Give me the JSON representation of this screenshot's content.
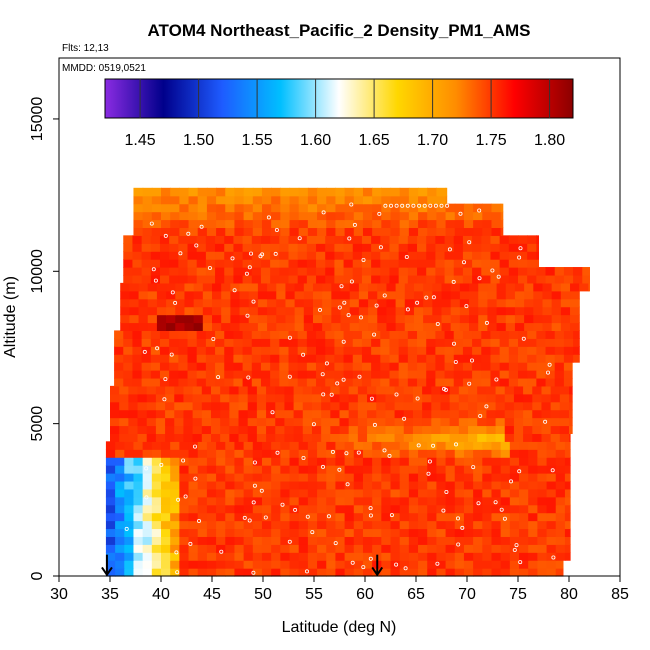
{
  "chart_data": {
    "type": "heatmap",
    "title": "ATOM4 Northeast_Pacific_2 Density_PM1_AMS",
    "annotations": {
      "flights": "Flts: 12,13",
      "dates": "MMDD: 0519,0521"
    },
    "xlabel": "Latitude (deg N)",
    "ylabel": "Altitude (m)",
    "xlim": [
      30,
      85
    ],
    "ylim": [
      0,
      17000
    ],
    "xticks": [
      30,
      35,
      40,
      45,
      50,
      55,
      60,
      65,
      70,
      75,
      80,
      85
    ],
    "yticks": [
      0,
      5000,
      10000,
      15000
    ],
    "colorbar": {
      "range": [
        1.42,
        1.82
      ],
      "ticks": [
        1.45,
        1.5,
        1.55,
        1.6,
        1.65,
        1.7,
        1.75,
        1.8
      ],
      "tick_labels": [
        "1.45",
        "1.50",
        "1.55",
        "1.60",
        "1.65",
        "1.70",
        "1.75",
        "1.80"
      ],
      "colors": [
        "#8a2be2",
        "#00008b",
        "#1e5bff",
        "#00bfff",
        "#ffffff",
        "#ffd700",
        "#ff8c00",
        "#ff0000",
        "#8b0000"
      ]
    },
    "background_value": 1.75,
    "features": [
      {
        "name": "low-density plume",
        "lat": [
          35,
          42
        ],
        "alt": [
          0,
          3800
        ],
        "value": 1.52
      },
      {
        "name": "high-density layer",
        "lat": [
          40,
          44
        ],
        "alt": [
          8000,
          8600
        ],
        "value": 1.81
      },
      {
        "name": "mid-level light band",
        "lat": [
          56,
          74
        ],
        "alt": [
          3800,
          5200
        ],
        "value": 1.68
      }
    ],
    "arrows_lat": [
      34.7,
      61.2
    ]
  }
}
